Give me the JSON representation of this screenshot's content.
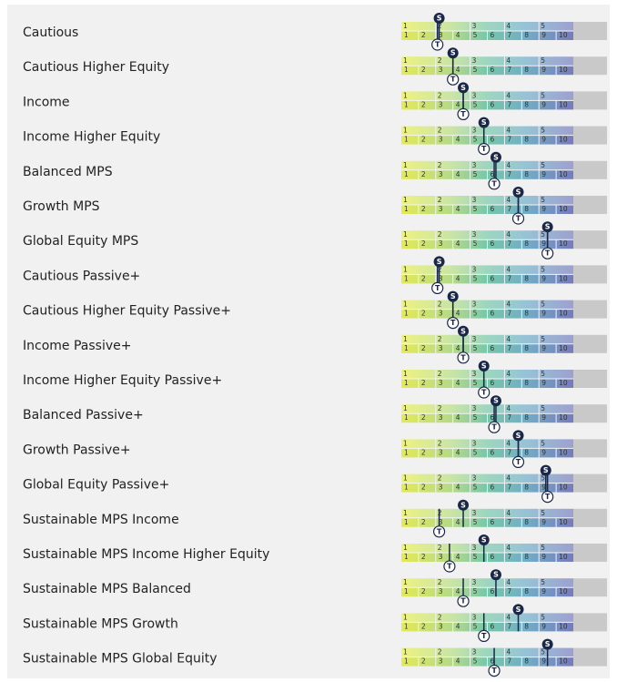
{
  "markers": {
    "s": "S",
    "t": "T"
  },
  "scale_top": [
    1,
    2,
    3,
    4,
    5
  ],
  "scale_bottom": [
    1,
    2,
    3,
    4,
    5,
    6,
    7,
    8,
    9,
    10
  ],
  "rows": [
    {
      "name": "Cautious",
      "s": 2.2,
      "t": 2.1
    },
    {
      "name": "Cautious Higher Equity",
      "s": 3.0,
      "t": 3.0
    },
    {
      "name": "Income",
      "s": 3.6,
      "t": 3.6
    },
    {
      "name": "Income Higher Equity",
      "s": 4.8,
      "t": 4.8
    },
    {
      "name": "Balanced MPS",
      "s": 5.5,
      "t": 5.4
    },
    {
      "name": "Growth MPS",
      "s": 6.8,
      "t": 6.8
    },
    {
      "name": "Global Equity MPS",
      "s": 8.5,
      "t": 8.5
    },
    {
      "name": "Cautious Passive+",
      "s": 2.2,
      "t": 2.1
    },
    {
      "name": "Cautious Higher Equity Passive+",
      "s": 3.0,
      "t": 3.0
    },
    {
      "name": "Income Passive+",
      "s": 3.6,
      "t": 3.6
    },
    {
      "name": "Income Higher Equity Passive+",
      "s": 4.8,
      "t": 4.8
    },
    {
      "name": "Balanced Passive+",
      "s": 5.5,
      "t": 5.4
    },
    {
      "name": "Growth Passive+",
      "s": 6.8,
      "t": 6.8
    },
    {
      "name": "Global Equity Passive+",
      "s": 8.4,
      "t": 8.5
    },
    {
      "name": "Sustainable MPS Income",
      "s": 3.6,
      "t": 2.2
    },
    {
      "name": "Sustainable MPS Income Higher Equity",
      "s": 4.8,
      "t": 2.8
    },
    {
      "name": "Sustainable MPS Balanced",
      "s": 5.5,
      "t": 3.6
    },
    {
      "name": "Sustainable MPS Growth",
      "s": 6.8,
      "t": 4.8
    },
    {
      "name": "Sustainable MPS Global Equity",
      "s": 8.5,
      "t": 5.4
    }
  ]
}
